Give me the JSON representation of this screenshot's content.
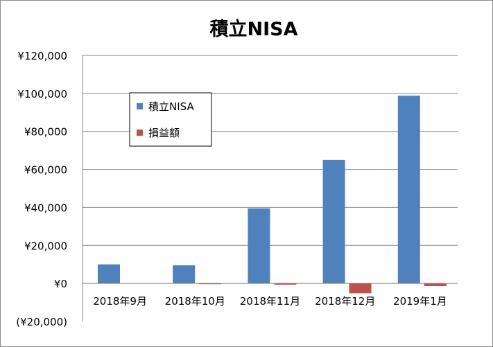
{
  "chart_data": {
    "type": "bar",
    "title": "積立NISA",
    "xlabel": "",
    "ylabel": "",
    "categories": [
      "2018年9月",
      "2018年10月",
      "2018年11月",
      "2018年12月",
      "2019年1月"
    ],
    "series": [
      {
        "name": "積立NISA",
        "color": "#4f81bd",
        "values": [
          10000,
          9500,
          39500,
          65000,
          98800
        ]
      },
      {
        "name": "損益額",
        "color": "#c0504d",
        "values": [
          0,
          -400,
          -700,
          -5200,
          -1400
        ]
      }
    ],
    "ylim": [
      -20000,
      120000
    ],
    "yticks": [
      120000,
      100000,
      80000,
      60000,
      40000,
      20000,
      0,
      -20000
    ],
    "ytick_labels": [
      "¥120,000",
      "¥100,000",
      "¥80,000",
      "¥60,000",
      "¥40,000",
      "¥20,000",
      "¥0",
      "(¥20,000)"
    ],
    "ytick_colors": [
      "#000000",
      "#000000",
      "#000000",
      "#000000",
      "#000000",
      "#000000",
      "#000000",
      "#ff0000"
    ],
    "grid": true,
    "legend": "upper-left inside plot",
    "gridline_color": "#868686"
  }
}
